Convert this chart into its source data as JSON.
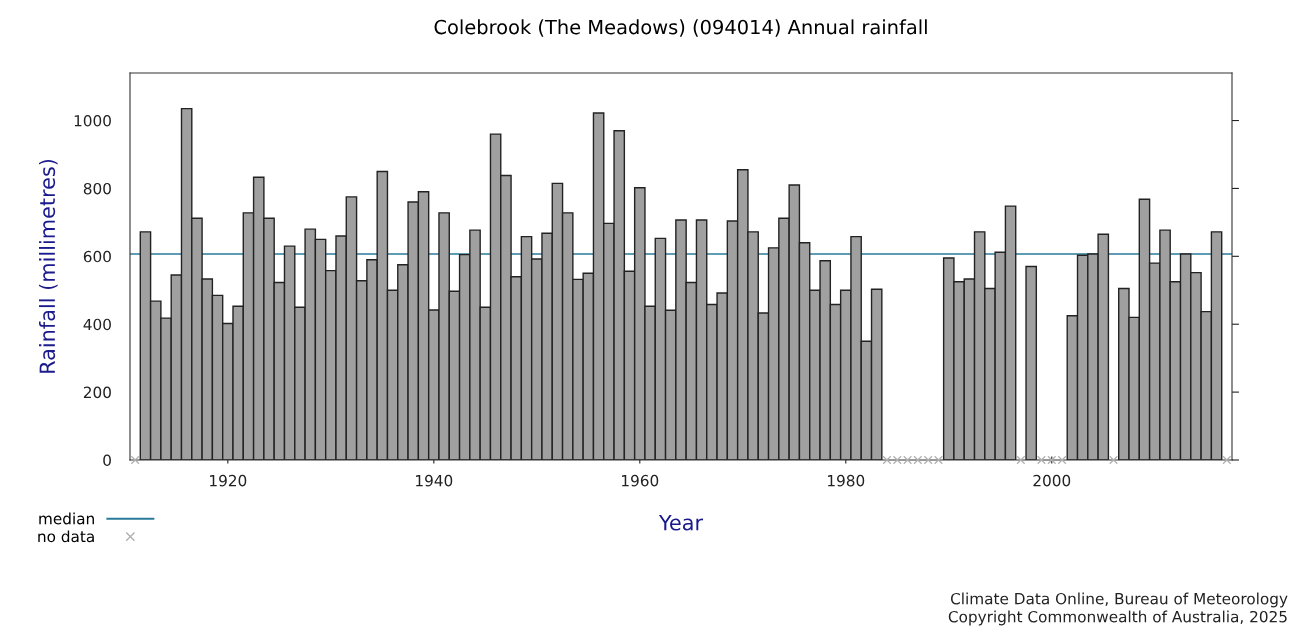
{
  "chart_data": {
    "type": "bar",
    "title": "Colebrook (The Meadows) (094014) Annual rainfall",
    "xlabel": "Year",
    "ylabel": "Rainfall (millimetres)",
    "x": [
      1912,
      1913,
      1914,
      1915,
      1916,
      1917,
      1918,
      1919,
      1920,
      1921,
      1922,
      1923,
      1924,
      1925,
      1926,
      1927,
      1928,
      1929,
      1930,
      1931,
      1932,
      1933,
      1934,
      1935,
      1936,
      1937,
      1938,
      1939,
      1940,
      1941,
      1942,
      1943,
      1944,
      1945,
      1946,
      1947,
      1948,
      1949,
      1950,
      1951,
      1952,
      1953,
      1954,
      1955,
      1956,
      1957,
      1958,
      1959,
      1960,
      1961,
      1962,
      1963,
      1964,
      1965,
      1966,
      1967,
      1968,
      1969,
      1970,
      1971,
      1972,
      1973,
      1974,
      1975,
      1976,
      1977,
      1978,
      1979,
      1980,
      1981,
      1982,
      1983,
      1984,
      1985,
      1986,
      1987,
      1988,
      1989,
      1990,
      1991,
      1992,
      1993,
      1994,
      1995,
      1996,
      1997,
      1998,
      1999,
      2000,
      2001,
      2002,
      2003,
      2004,
      2005,
      2006,
      2007,
      2008,
      2009,
      2010,
      2011,
      2012,
      2013,
      2014,
      2015,
      2016
    ],
    "series": [
      {
        "color": "#a0a0a0",
        "values": [
          672,
          468,
          418,
          545,
          1035,
          712,
          533,
          485,
          402,
          453,
          728,
          833,
          712,
          523,
          630,
          450,
          680,
          650,
          558,
          660,
          775,
          528,
          590,
          850,
          500,
          575,
          760,
          790,
          442,
          728,
          497,
          605,
          677,
          450,
          960,
          838,
          540,
          658,
          592,
          668,
          815,
          728,
          532,
          550,
          1022,
          697,
          970,
          556,
          802,
          453,
          653,
          441,
          707,
          523,
          707,
          458,
          492,
          704,
          855,
          672,
          433,
          625,
          712,
          810,
          640,
          500,
          587,
          458,
          500,
          658,
          350,
          503,
          null,
          null,
          null,
          null,
          null,
          null,
          595,
          525,
          533,
          672,
          505,
          612,
          748,
          null,
          570,
          null,
          null,
          null,
          425,
          603,
          607,
          665,
          null,
          505,
          420,
          768,
          580,
          677,
          525,
          607,
          552,
          437,
          672
        ]
      },
      {
        "type": "scatter",
        "name": "no data",
        "color": "#b0b0b0",
        "marker": "cross",
        "x": [
          1911,
          1984,
          1985,
          1986,
          1987,
          1988,
          1989,
          1997,
          1999,
          2000,
          2001,
          2006,
          2017
        ],
        "values": [
          0,
          0,
          0,
          0,
          0,
          0,
          0,
          0,
          0,
          0,
          0,
          0,
          0
        ]
      }
    ],
    "ref_lines": [
      {
        "axis": "y",
        "value": 607,
        "label": "median",
        "color": "#2a7a9a"
      }
    ],
    "xlim": [
      1910.5,
      2017.5
    ],
    "xticks": [
      1920,
      1940,
      1960,
      1980,
      2000
    ],
    "ylim": [
      0,
      1140
    ],
    "yticks": [
      0,
      200,
      400,
      600,
      800,
      1000
    ],
    "grid": false,
    "legend": "bottom left",
    "annotations": [
      "Climate Data Online, Bureau of Meteorology",
      "Copyright Commonwealth of Australia, 2025"
    ]
  }
}
